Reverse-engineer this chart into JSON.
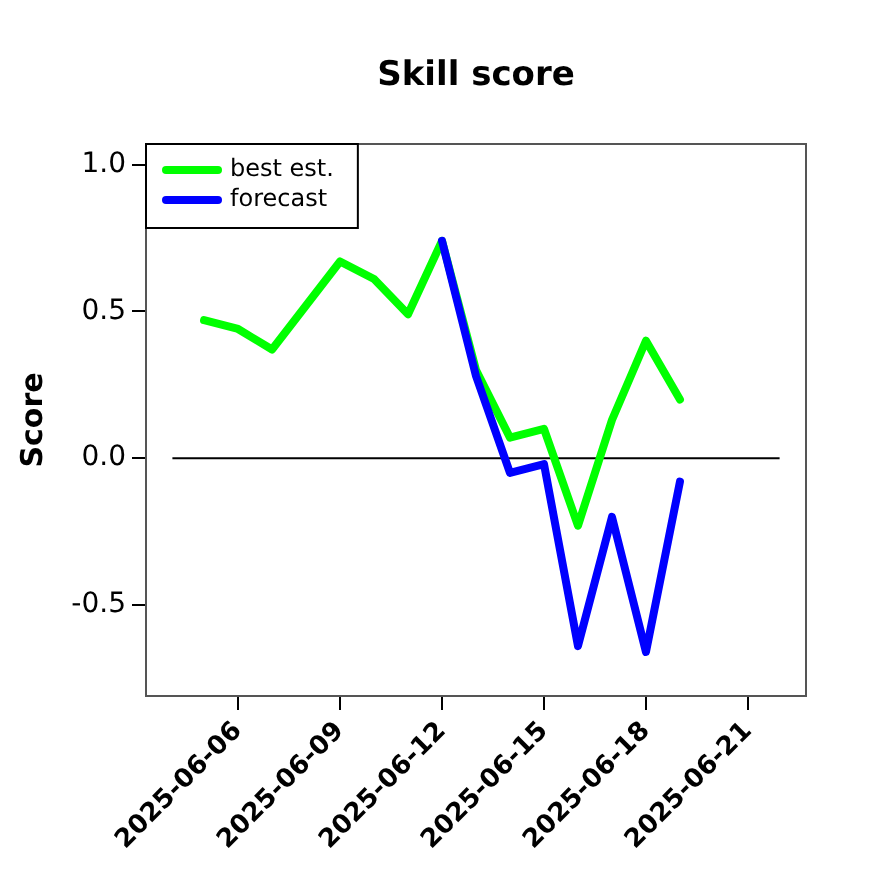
{
  "chart_data": {
    "type": "line",
    "title": "Skill score",
    "ylabel": "Score",
    "xlim": [
      "2025-06-03T07:00",
      "2025-06-22T17:00"
    ],
    "xticks": [
      {
        "value": "2025-06-06",
        "label": "2025-06-06"
      },
      {
        "value": "2025-06-09",
        "label": "2025-06-09"
      },
      {
        "value": "2025-06-12",
        "label": "2025-06-12"
      },
      {
        "value": "2025-06-15",
        "label": "2025-06-15"
      },
      {
        "value": "2025-06-18",
        "label": "2025-06-18"
      },
      {
        "value": "2025-06-21",
        "label": "2025-06-21"
      }
    ],
    "ylim": [
      -0.81,
      1.07
    ],
    "yticks": [
      {
        "value": -0.5,
        "label": "-0.5"
      },
      {
        "value": 0,
        "label": "0.0"
      },
      {
        "value": 0.5,
        "label": "0.5"
      },
      {
        "value": 1,
        "label": "1.0"
      }
    ],
    "legend": "top left",
    "marker": "none",
    "line_style": "solid",
    "ref_lines": [
      {
        "axis": "y",
        "value": 0,
        "color": "#000000"
      }
    ],
    "series": [
      {
        "name": "best est.",
        "color": "#00ff00",
        "x": [
          "2025-06-05",
          "2025-06-06",
          "2025-06-07",
          "2025-06-08",
          "2025-06-09",
          "2025-06-10",
          "2025-06-11",
          "2025-06-12",
          "2025-06-13",
          "2025-06-14",
          "2025-06-15",
          "2025-06-16",
          "2025-06-17",
          "2025-06-18",
          "2025-06-19"
        ],
        "values": [
          0.47,
          0.44,
          0.37,
          0.52,
          0.67,
          0.61,
          0.49,
          0.74,
          0.3,
          0.07,
          0.1,
          -0.23,
          0.13,
          0.4,
          0.2
        ]
      },
      {
        "name": "forecast",
        "color": "#0000ff",
        "x": [
          "2025-06-12",
          "2025-06-13",
          "2025-06-14",
          "2025-06-15",
          "2025-06-16",
          "2025-06-17",
          "2025-06-18",
          "2025-06-19"
        ],
        "values": [
          0.74,
          0.28,
          -0.05,
          -0.02,
          -0.64,
          -0.2,
          -0.66,
          -0.08
        ]
      }
    ]
  }
}
